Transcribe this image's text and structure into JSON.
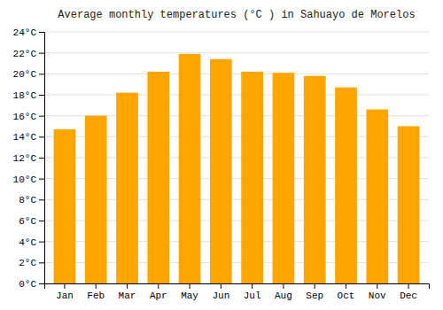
{
  "chart_data": {
    "type": "bar",
    "title": "Average monthly temperatures (°C ) in Sahuayo de Morelos",
    "categories": [
      "Jan",
      "Feb",
      "Mar",
      "Apr",
      "May",
      "Jun",
      "Jul",
      "Aug",
      "Sep",
      "Oct",
      "Nov",
      "Dec"
    ],
    "values": [
      14.7,
      16.0,
      18.2,
      20.2,
      21.9,
      21.4,
      20.2,
      20.1,
      19.8,
      18.7,
      16.6,
      15.0
    ],
    "color": "#FFA500",
    "ylim": [
      0,
      24
    ],
    "yticks": [
      {
        "value": 0,
        "label": "0°C"
      },
      {
        "value": 2,
        "label": "2°C"
      },
      {
        "value": 4,
        "label": "4°C"
      },
      {
        "value": 6,
        "label": "6°C"
      },
      {
        "value": 8,
        "label": "8°C"
      },
      {
        "value": 10,
        "label": "10°C"
      },
      {
        "value": 12,
        "label": "12°C"
      },
      {
        "value": 14,
        "label": "14°C"
      },
      {
        "value": 16,
        "label": "16°C"
      },
      {
        "value": 18,
        "label": "18°C"
      },
      {
        "value": 20,
        "label": "20°C"
      },
      {
        "value": 22,
        "label": "22°C"
      },
      {
        "value": 24,
        "label": "24°C"
      }
    ],
    "grid": true
  }
}
